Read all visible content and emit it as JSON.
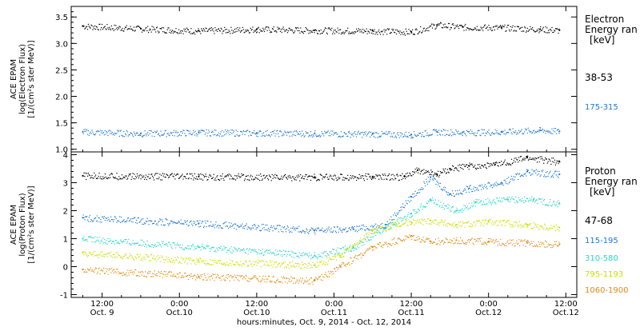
{
  "colors": {
    "black": "#000000",
    "blue": "#1f77d0",
    "cyan": "#2ad4c8",
    "yellow": "#c8e000",
    "orange": "#e08a14",
    "axis": "#000000",
    "background": "#ffffff"
  },
  "x_axis": {
    "title": "hours:minutes, Oct.  9, 2014 - Oct. 12, 2014",
    "ticks": [
      {
        "t": 12,
        "time": "12:00",
        "date": "Oct. 9"
      },
      {
        "t": 24,
        "time": "0:00",
        "date": "Oct.10"
      },
      {
        "t": 36,
        "time": "12:00",
        "date": "Oct.10"
      },
      {
        "t": 48,
        "time": "0:00",
        "date": "Oct.11"
      },
      {
        "t": 60,
        "time": "12:00",
        "date": "Oct.11"
      },
      {
        "t": 72,
        "time": "0:00",
        "date": "Oct.12"
      },
      {
        "t": 84,
        "time": "12:00",
        "date": "Oct.12"
      }
    ],
    "range_hours": [
      7.2,
      85.7
    ]
  },
  "panels": [
    {
      "name": "electron",
      "ylabel_lines": [
        "ACE EPAM",
        "log(Electron Flux)",
        "[1/(cm²s ster MeV)]"
      ],
      "yticks": [
        "1.0",
        "1.5",
        "2.0",
        "2.5",
        "3.0",
        "3.5"
      ],
      "legend_title": [
        "Electron",
        "Energy ran",
        "[keV]"
      ]
    },
    {
      "name": "proton",
      "ylabel_lines": [
        "ACE EPAM",
        "log(Proton Flux)",
        "[1/(cm²s ster MeV)]"
      ],
      "yticks": [
        "-1",
        "0",
        "1",
        "2",
        "3",
        "4"
      ],
      "legend_title": [
        "Proton",
        "Energy ran",
        "[keV]"
      ]
    }
  ],
  "chart_data": [
    {
      "type": "scatter",
      "title": "",
      "xlabel": "hours:minutes, Oct.  9, 2014 - Oct. 12, 2014",
      "ylabel": "ACE EPAM log(Electron Flux) [1/(cm²s ster MeV)]",
      "xlim": [
        "2014-10-09T07:12",
        "2014-10-12T13:42"
      ],
      "ylim": [
        0.95,
        3.7
      ],
      "series": [
        {
          "name": "38-53",
          "color": "#000000",
          "x": [
            "2014-10-09T09:00",
            "2014-10-09T18:00",
            "2014-10-10T03:00",
            "2014-10-10T12:00",
            "2014-10-10T21:00",
            "2014-10-11T06:00",
            "2014-10-11T12:00",
            "2014-10-11T16:00",
            "2014-10-11T20:00",
            "2014-10-12T02:00",
            "2014-10-12T08:00",
            "2014-10-12T11:00"
          ],
          "values": [
            3.33,
            3.28,
            3.24,
            3.27,
            3.25,
            3.24,
            3.22,
            3.35,
            3.31,
            3.3,
            3.27,
            3.25
          ]
        },
        {
          "name": "175-315",
          "color": "#1f77d0",
          "x": [
            "2014-10-09T09:00",
            "2014-10-09T18:00",
            "2014-10-10T03:00",
            "2014-10-10T12:00",
            "2014-10-10T21:00",
            "2014-10-11T06:00",
            "2014-10-11T12:00",
            "2014-10-11T16:00",
            "2014-10-11T20:00",
            "2014-10-12T02:00",
            "2014-10-12T08:00",
            "2014-10-12T11:00"
          ],
          "values": [
            1.33,
            1.3,
            1.32,
            1.31,
            1.3,
            1.29,
            1.28,
            1.33,
            1.32,
            1.33,
            1.36,
            1.34
          ]
        }
      ]
    },
    {
      "type": "scatter",
      "title": "",
      "xlabel": "hours:minutes, Oct.  9, 2014 - Oct. 12, 2014",
      "ylabel": "ACE EPAM log(Proton Flux) [1/(cm²s ster MeV)]",
      "xlim": [
        "2014-10-09T07:12",
        "2014-10-12T13:42"
      ],
      "ylim": [
        -1.1,
        4.1
      ],
      "series": [
        {
          "name": "47-68",
          "color": "#000000",
          "x": [
            "2014-10-09T09:00",
            "2014-10-10T03:00",
            "2014-10-10T21:00",
            "2014-10-11T06:00",
            "2014-10-11T11:00",
            "2014-10-11T13:00",
            "2014-10-11T16:00",
            "2014-10-11T18:00",
            "2014-10-11T21:00",
            "2014-10-12T01:00",
            "2014-10-12T06:00",
            "2014-10-12T11:00"
          ],
          "values": [
            3.25,
            3.22,
            3.2,
            3.22,
            3.22,
            3.45,
            3.3,
            3.5,
            3.6,
            3.65,
            3.9,
            3.75
          ]
        },
        {
          "name": "115-195",
          "color": "#1f77d0",
          "x": [
            "2014-10-09T09:00",
            "2014-10-10T03:00",
            "2014-10-10T21:00",
            "2014-10-11T03:00",
            "2014-10-11T08:00",
            "2014-10-11T12:00",
            "2014-10-11T15:00",
            "2014-10-11T18:00",
            "2014-10-11T21:00",
            "2014-10-12T02:00",
            "2014-10-12T06:00",
            "2014-10-12T11:00"
          ],
          "values": [
            1.75,
            1.55,
            1.3,
            1.35,
            1.5,
            2.5,
            3.2,
            2.6,
            2.8,
            3.0,
            3.4,
            3.3
          ]
        },
        {
          "name": "310-580",
          "color": "#2ad4c8",
          "x": [
            "2014-10-09T09:00",
            "2014-10-10T03:00",
            "2014-10-10T21:00",
            "2014-10-11T03:00",
            "2014-10-11T08:00",
            "2014-10-11T12:00",
            "2014-10-11T15:00",
            "2014-10-11T19:00",
            "2014-10-11T22:00",
            "2014-10-12T03:00",
            "2014-10-12T07:00",
            "2014-10-12T11:00"
          ],
          "values": [
            1.0,
            0.7,
            0.4,
            0.7,
            1.4,
            1.9,
            2.4,
            2.0,
            2.3,
            2.4,
            2.4,
            2.25
          ]
        },
        {
          "name": "795-1193",
          "color": "#c8e000",
          "x": [
            "2014-10-09T09:00",
            "2014-10-10T03:00",
            "2014-10-10T21:00",
            "2014-10-11T01:00",
            "2014-10-11T06:00",
            "2014-10-11T12:00",
            "2014-10-11T15:00",
            "2014-10-11T19:00",
            "2014-10-12T00:00",
            "2014-10-12T06:00",
            "2014-10-12T11:00"
          ],
          "values": [
            0.5,
            0.2,
            0.05,
            0.4,
            1.3,
            1.6,
            1.65,
            1.5,
            1.6,
            1.5,
            1.4
          ]
        },
        {
          "name": "1060-1900",
          "color": "#e08a14",
          "x": [
            "2014-10-09T09:00",
            "2014-10-10T03:00",
            "2014-10-10T21:00",
            "2014-10-11T01:00",
            "2014-10-11T06:00",
            "2014-10-11T12:00",
            "2014-10-11T15:00",
            "2014-10-11T19:00",
            "2014-10-12T00:00",
            "2014-10-12T06:00",
            "2014-10-12T11:00"
          ],
          "values": [
            -0.1,
            -0.35,
            -0.5,
            0.0,
            0.7,
            1.1,
            0.9,
            0.95,
            0.9,
            0.85,
            0.8
          ]
        }
      ]
    }
  ]
}
